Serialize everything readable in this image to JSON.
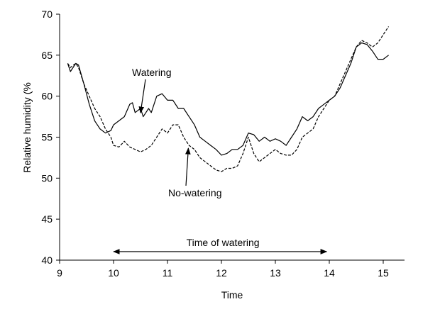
{
  "chart_data": {
    "type": "line",
    "title": "",
    "xlabel": "Time",
    "ylabel": "Relative humidity (%",
    "xlim": [
      9,
      15.5
    ],
    "ylim": [
      40,
      70
    ],
    "xticks": [
      9,
      10,
      11,
      12,
      13,
      14,
      15
    ],
    "yticks": [
      40,
      45,
      50,
      55,
      60,
      65,
      70
    ],
    "grid": false,
    "legend": "none",
    "series": [
      {
        "key": "watering",
        "style": "solid",
        "color": "#000000",
        "x": [
          9.15,
          9.2,
          9.3,
          9.35,
          9.45,
          9.55,
          9.65,
          9.75,
          9.85,
          9.95,
          10.0,
          10.1,
          10.2,
          10.3,
          10.35,
          10.4,
          10.5,
          10.55,
          10.6,
          10.65,
          10.7,
          10.8,
          10.9,
          11.0,
          11.1,
          11.2,
          11.3,
          11.4,
          11.5,
          11.6,
          11.7,
          11.8,
          11.9,
          12.0,
          12.1,
          12.2,
          12.3,
          12.4,
          12.5,
          12.6,
          12.7,
          12.8,
          12.9,
          13.0,
          13.1,
          13.2,
          13.3,
          13.4,
          13.5,
          13.6,
          13.7,
          13.8,
          13.9,
          14.0,
          14.1,
          14.2,
          14.3,
          14.4,
          14.5,
          14.6,
          14.7,
          14.8,
          14.9,
          15.0,
          15.1
        ],
        "y": [
          64.0,
          63.0,
          64.0,
          63.8,
          61.5,
          59.0,
          57.0,
          56.0,
          55.5,
          55.8,
          56.5,
          57.0,
          57.5,
          59.0,
          59.2,
          58.0,
          58.5,
          57.5,
          58.0,
          58.5,
          58.0,
          60.0,
          60.3,
          59.5,
          59.5,
          58.5,
          58.5,
          57.5,
          56.5,
          55.0,
          54.5,
          54.0,
          53.5,
          52.8,
          53.0,
          53.5,
          53.5,
          54.0,
          55.5,
          55.3,
          54.5,
          55.0,
          54.5,
          54.8,
          54.5,
          54.0,
          55.0,
          56.0,
          57.5,
          57.0,
          57.5,
          58.5,
          59.0,
          59.5,
          60.0,
          61.0,
          62.5,
          64.0,
          66.0,
          66.5,
          66.3,
          65.5,
          64.5,
          64.5,
          65.0
        ]
      },
      {
        "key": "no-watering",
        "style": "dashed",
        "color": "#000000",
        "x": [
          9.15,
          9.2,
          9.3,
          9.35,
          9.45,
          9.55,
          9.65,
          9.75,
          9.85,
          9.95,
          10.0,
          10.1,
          10.2,
          10.3,
          10.4,
          10.5,
          10.6,
          10.7,
          10.8,
          10.9,
          11.0,
          11.1,
          11.2,
          11.3,
          11.4,
          11.5,
          11.6,
          11.7,
          11.8,
          11.9,
          12.0,
          12.1,
          12.2,
          12.3,
          12.4,
          12.5,
          12.6,
          12.7,
          12.8,
          12.9,
          13.0,
          13.1,
          13.2,
          13.3,
          13.4,
          13.5,
          13.6,
          13.7,
          13.8,
          13.9,
          14.0,
          14.1,
          14.2,
          14.3,
          14.4,
          14.5,
          14.6,
          14.7,
          14.8,
          14.9,
          15.0,
          15.1
        ],
        "y": [
          64.0,
          63.5,
          64.0,
          63.5,
          61.5,
          60.0,
          58.5,
          57.5,
          56.0,
          55.0,
          54.0,
          53.8,
          54.5,
          53.8,
          53.5,
          53.2,
          53.5,
          54.0,
          55.0,
          56.0,
          55.5,
          56.5,
          56.5,
          55.0,
          54.0,
          53.5,
          52.5,
          52.0,
          51.5,
          51.0,
          50.8,
          51.2,
          51.2,
          51.5,
          53.0,
          55.0,
          53.0,
          52.0,
          52.5,
          53.0,
          53.5,
          53.0,
          52.8,
          52.8,
          53.5,
          55.0,
          55.5,
          56.0,
          57.5,
          58.5,
          59.5,
          60.0,
          61.5,
          63.0,
          64.5,
          66.0,
          66.8,
          66.5,
          66.0,
          66.5,
          67.5,
          68.5
        ]
      }
    ],
    "annotations": {
      "watering_label": "Watering",
      "no_watering_label": "No-watering",
      "watering_period_label": "Time of watering",
      "watering_period": [
        10.0,
        13.95
      ],
      "watering_arrow_target": [
        10.5,
        57.8
      ],
      "no_watering_arrow_target": [
        11.4,
        54.0
      ]
    }
  }
}
